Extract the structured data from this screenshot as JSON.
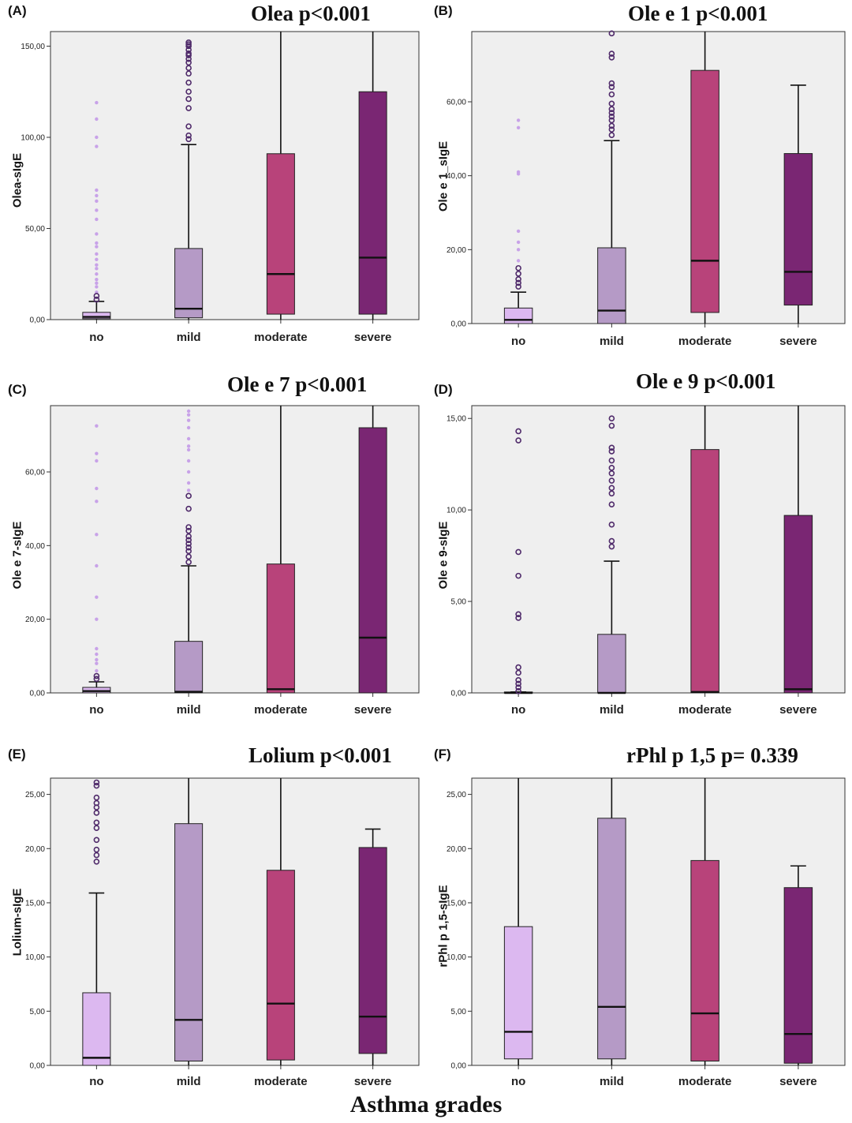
{
  "x_title": "Asthma grades",
  "colors": {
    "no": "#dcb8f0",
    "mild": "#b59ac6",
    "moderate": "#b8437a",
    "severe": "#7a2673",
    "plot_bg": "#efefef",
    "outlier_light": "#c8a2e8",
    "outlier_dark": "#4f2a6a"
  },
  "chart_data": [
    {
      "type": "box",
      "panel": "(A)",
      "title": "Olea p<0.001",
      "ylabel": "Olea-sIgE",
      "ylim": [
        0,
        158
      ],
      "yticks": [
        0,
        50,
        100,
        150
      ],
      "ytick_labels": [
        "0,00",
        "50,00",
        "100,00",
        "150,00"
      ],
      "categories": [
        "no",
        "mild",
        "moderate",
        "severe"
      ],
      "boxes": [
        {
          "q1": 0.5,
          "median": 1.5,
          "q3": 4,
          "wlow": 0,
          "whigh": 10,
          "outliers_dark": [
            11,
            13
          ],
          "outliers_light": [
            15,
            18,
            20,
            22,
            25,
            28,
            30,
            33,
            36,
            40,
            42,
            47,
            55,
            60,
            65,
            68,
            71,
            95,
            100,
            110,
            119
          ]
        },
        {
          "q1": 1,
          "median": 6,
          "q3": 39,
          "wlow": 0,
          "whigh": 96,
          "outliers_dark": [
            99,
            101,
            106,
            116,
            121,
            125,
            130,
            135,
            138,
            141,
            143,
            145,
            146,
            148,
            150,
            151,
            152
          ],
          "outliers_light": []
        },
        {
          "q1": 3,
          "median": 25,
          "q3": 91,
          "wlow": 0,
          "whigh": 158,
          "outliers_dark": [],
          "outliers_light": []
        },
        {
          "q1": 3,
          "median": 34,
          "q3": 125,
          "wlow": 0,
          "whigh": 158,
          "outliers_dark": [],
          "outliers_light": []
        }
      ]
    },
    {
      "type": "box",
      "panel": "(B)",
      "title": "Ole e 1 p<0.001",
      "ylabel": "Ole e 1_sIgE",
      "ylim": [
        0,
        79
      ],
      "yticks": [
        0,
        20,
        40,
        60
      ],
      "ytick_labels": [
        "0,00",
        "20,00",
        "40,00",
        "60,00"
      ],
      "categories": [
        "no",
        "mild",
        "moderate",
        "severe"
      ],
      "boxes": [
        {
          "q1": 0,
          "median": 1,
          "q3": 4.2,
          "wlow": 0,
          "whigh": 8.5,
          "outliers_dark": [
            10,
            11,
            12,
            13.5,
            15
          ],
          "outliers_light": [
            17,
            20,
            22,
            25,
            40.5,
            41,
            53,
            55
          ]
        },
        {
          "q1": 0,
          "median": 3.5,
          "q3": 20.5,
          "wlow": 0,
          "whigh": 49.5,
          "outliers_dark": [
            51,
            52.5,
            53.5,
            55,
            56,
            57,
            58,
            59.5,
            62,
            64,
            65,
            72,
            73,
            78.5
          ],
          "outliers_light": []
        },
        {
          "q1": 3,
          "median": 17,
          "q3": 68.5,
          "wlow": 0,
          "whigh": 79,
          "outliers_dark": [],
          "outliers_light": []
        },
        {
          "q1": 5,
          "median": 14,
          "q3": 46,
          "wlow": 0,
          "whigh": 64.5,
          "outliers_dark": [],
          "outliers_light": []
        }
      ]
    },
    {
      "type": "box",
      "panel": "(C)",
      "title": "Ole e 7 p<0.001",
      "ylabel": "Ole e 7-sIgE",
      "ylim": [
        0,
        78
      ],
      "yticks": [
        0,
        20,
        40,
        60
      ],
      "ytick_labels": [
        "0,00",
        "20,00",
        "40,00",
        "60,00"
      ],
      "categories": [
        "no",
        "mild",
        "moderate",
        "severe"
      ],
      "boxes": [
        {
          "q1": 0,
          "median": 0.5,
          "q3": 1.5,
          "wlow": 0,
          "whigh": 3,
          "outliers_dark": [
            3.8,
            4.6
          ],
          "outliers_light": [
            6,
            8,
            9,
            10.5,
            12,
            20,
            26,
            34.5,
            43,
            52,
            55.5,
            63,
            65,
            72.5
          ]
        },
        {
          "q1": 0,
          "median": 0.3,
          "q3": 14,
          "wlow": 0,
          "whigh": 34.5,
          "outliers_dark": [
            35.5,
            37,
            38.5,
            39.5,
            40.5,
            41.5,
            42.5,
            44,
            45,
            50,
            53.5
          ],
          "outliers_light": [
            55,
            57,
            60,
            63,
            66,
            67,
            69,
            72,
            74,
            75.5,
            76.5
          ]
        },
        {
          "q1": 0,
          "median": 1,
          "q3": 35,
          "wlow": 0,
          "whigh": 78,
          "outliers_dark": [],
          "outliers_light": []
        },
        {
          "q1": 0,
          "median": 15,
          "q3": 72,
          "wlow": 0,
          "whigh": 78,
          "outliers_dark": [],
          "outliers_light": []
        }
      ]
    },
    {
      "type": "box",
      "panel": "(D)",
      "title": "Ole e 9 p<0.001",
      "ylabel": "Ole e 9-sIgE",
      "ylim": [
        0,
        15.7
      ],
      "yticks": [
        0,
        5,
        10,
        15
      ],
      "ytick_labels": [
        "0,00",
        "5,00",
        "10,00",
        "15,00"
      ],
      "categories": [
        "no",
        "mild",
        "moderate",
        "severe"
      ],
      "boxes": [
        {
          "q1": 0,
          "median": 0,
          "q3": 0.05,
          "wlow": 0,
          "whigh": 0.05,
          "outliers_dark": [
            0.1,
            0.3,
            0.5,
            0.7,
            1.1,
            1.4,
            4.1,
            4.3,
            6.4,
            7.7,
            13.8,
            14.3
          ],
          "outliers_light": []
        },
        {
          "q1": 0,
          "median": 0,
          "q3": 3.2,
          "wlow": 0,
          "whigh": 7.2,
          "outliers_dark": [
            8.0,
            8.3,
            9.2,
            10.3,
            10.9,
            11.2,
            11.6,
            12.0,
            12.3,
            12.7,
            13.2,
            13.4,
            14.6,
            15.0
          ],
          "outliers_light": []
        },
        {
          "q1": 0,
          "median": 0.05,
          "q3": 13.3,
          "wlow": 0,
          "whigh": 15.7,
          "outliers_dark": [],
          "outliers_light": []
        },
        {
          "q1": 0,
          "median": 0.2,
          "q3": 9.7,
          "wlow": 0,
          "whigh": 15.7,
          "outliers_dark": [],
          "outliers_light": []
        }
      ]
    },
    {
      "type": "box",
      "panel": "(E)",
      "title": "Lolium p<0.001",
      "ylabel": "Lolium-sIgE",
      "ylim": [
        0,
        26.5
      ],
      "yticks": [
        0,
        5,
        10,
        15,
        20,
        25
      ],
      "ytick_labels": [
        "0,00",
        "5,00",
        "10,00",
        "15,00",
        "20,00",
        "25,00"
      ],
      "categories": [
        "no",
        "mild",
        "moderate",
        "severe"
      ],
      "boxes": [
        {
          "q1": 0,
          "median": 0.7,
          "q3": 6.7,
          "wlow": 0,
          "whigh": 15.9,
          "outliers_dark": [
            18.8,
            19.4,
            19.9,
            20.8,
            21.9,
            22.4,
            23.3,
            23.8,
            24.2,
            24.7,
            25.8,
            26.1
          ],
          "outliers_light": []
        },
        {
          "q1": 0.4,
          "median": 4.2,
          "q3": 22.3,
          "wlow": 0,
          "whigh": 26.5,
          "outliers_dark": [],
          "outliers_light": []
        },
        {
          "q1": 0.5,
          "median": 5.7,
          "q3": 18.0,
          "wlow": 0,
          "whigh": 26.5,
          "outliers_dark": [],
          "outliers_light": []
        },
        {
          "q1": 1.1,
          "median": 4.5,
          "q3": 20.1,
          "wlow": 0,
          "whigh": 21.8,
          "outliers_dark": [],
          "outliers_light": []
        }
      ]
    },
    {
      "type": "box",
      "panel": "(F)",
      "title": "rPhl p 1,5 p= 0.339",
      "ylabel": "rPhl p 1,5-sIgE",
      "ylim": [
        0,
        26.5
      ],
      "yticks": [
        0,
        5,
        10,
        15,
        20,
        25
      ],
      "ytick_labels": [
        "0,00",
        "5,00",
        "10,00",
        "15,00",
        "20,00",
        "25,00"
      ],
      "categories": [
        "no",
        "mild",
        "moderate",
        "severe"
      ],
      "boxes": [
        {
          "q1": 0.6,
          "median": 3.1,
          "q3": 12.8,
          "wlow": 0,
          "whigh": 26.5,
          "outliers_dark": [],
          "outliers_light": []
        },
        {
          "q1": 0.6,
          "median": 5.4,
          "q3": 22.8,
          "wlow": 0,
          "whigh": 26.5,
          "outliers_dark": [],
          "outliers_light": []
        },
        {
          "q1": 0.4,
          "median": 4.8,
          "q3": 18.9,
          "wlow": 0,
          "whigh": 26.5,
          "outliers_dark": [],
          "outliers_light": []
        },
        {
          "q1": 0.2,
          "median": 2.9,
          "q3": 16.4,
          "wlow": 0,
          "whigh": 18.4,
          "outliers_dark": [],
          "outliers_light": []
        }
      ]
    }
  ]
}
